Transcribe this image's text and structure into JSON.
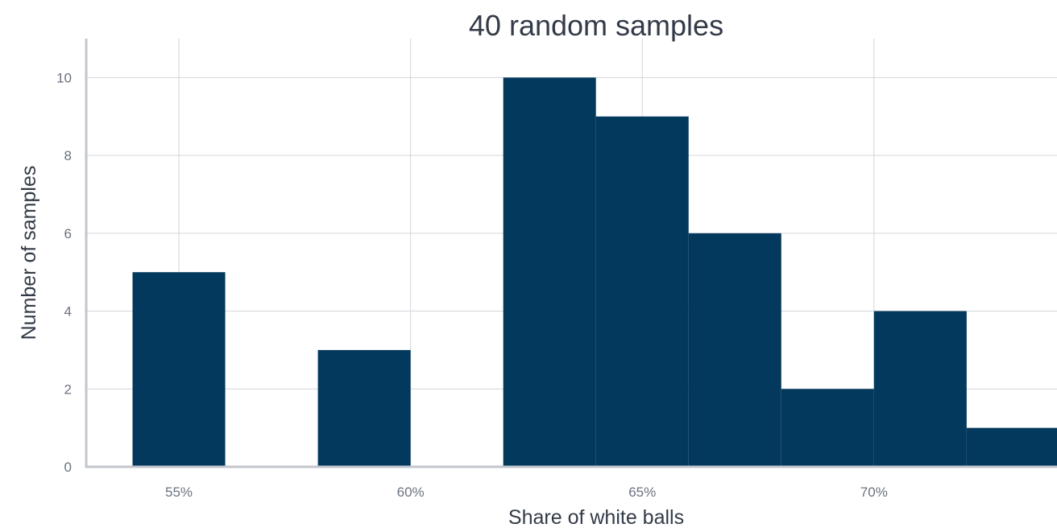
{
  "chart_data": {
    "type": "bar",
    "title": "40 random samples",
    "xlabel": "Share of white balls",
    "ylabel": "Number of samples",
    "x_ticks": [
      {
        "value": 0.55,
        "label": "55%"
      },
      {
        "value": 0.6,
        "label": "60%"
      },
      {
        "value": 0.65,
        "label": "65%"
      },
      {
        "value": 0.7,
        "label": "70%"
      }
    ],
    "y_ticks": [
      0,
      2,
      4,
      6,
      8,
      10
    ],
    "xlim": [
      0.53,
      0.7395
    ],
    "ylim": [
      0,
      11
    ],
    "bins": [
      {
        "start": 0.54,
        "end": 0.56,
        "count": 5
      },
      {
        "start": 0.56,
        "end": 0.58,
        "count": 0
      },
      {
        "start": 0.58,
        "end": 0.6,
        "count": 3
      },
      {
        "start": 0.6,
        "end": 0.62,
        "count": 0
      },
      {
        "start": 0.62,
        "end": 0.64,
        "count": 10
      },
      {
        "start": 0.64,
        "end": 0.66,
        "count": 9
      },
      {
        "start": 0.66,
        "end": 0.68,
        "count": 6
      },
      {
        "start": 0.68,
        "end": 0.7,
        "count": 2
      },
      {
        "start": 0.7,
        "end": 0.72,
        "count": 4
      },
      {
        "start": 0.72,
        "end": 0.74,
        "count": 1
      }
    ],
    "bar_color": "#03395c",
    "grid": true,
    "legend": "none"
  }
}
